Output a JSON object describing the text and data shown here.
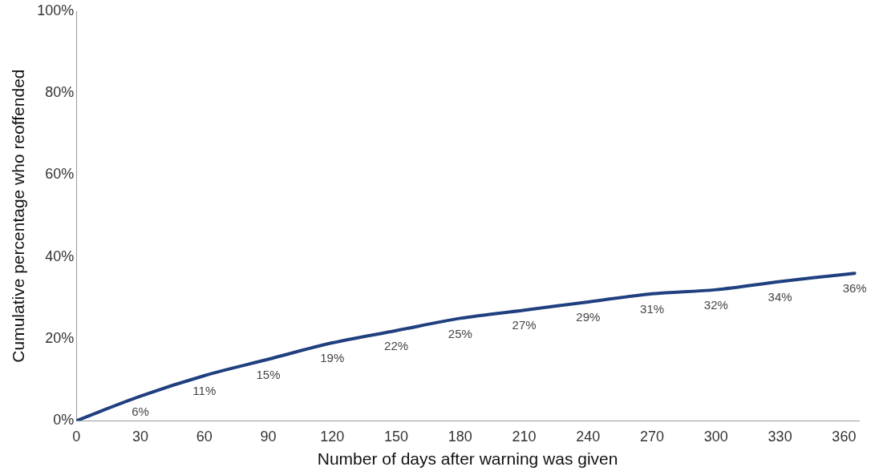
{
  "chart_data": {
    "type": "line",
    "xlabel": "Number of days after warning was given",
    "ylabel": "Cumulative percentage who reoffended",
    "x": [
      0,
      30,
      60,
      90,
      120,
      150,
      180,
      210,
      240,
      270,
      300,
      330,
      365
    ],
    "series": [
      {
        "color": "#1f3f7f",
        "values": [
          0,
          6,
          11,
          15,
          19,
          22,
          25,
          27,
          29,
          31,
          32,
          34,
          36
        ],
        "value_labels": [
          null,
          "6%",
          "11%",
          "15%",
          "19%",
          "22%",
          "25%",
          "27%",
          "29%",
          "31%",
          "32%",
          "34%",
          "36%"
        ]
      }
    ],
    "xlim": [
      0,
      367
    ],
    "xticks": [
      0,
      30,
      60,
      90,
      120,
      150,
      180,
      210,
      240,
      270,
      300,
      330,
      360
    ],
    "ylim": [
      0,
      100
    ],
    "yticks": [
      {
        "value": 0,
        "label": "0%"
      },
      {
        "value": 20,
        "label": "20%"
      },
      {
        "value": 40,
        "label": "40%"
      },
      {
        "value": 60,
        "label": "60%"
      },
      {
        "value": 80,
        "label": "80%"
      },
      {
        "value": 100,
        "label": "100%"
      }
    ],
    "grid": false,
    "legend": false,
    "marker": "none",
    "line_style": "solid"
  }
}
